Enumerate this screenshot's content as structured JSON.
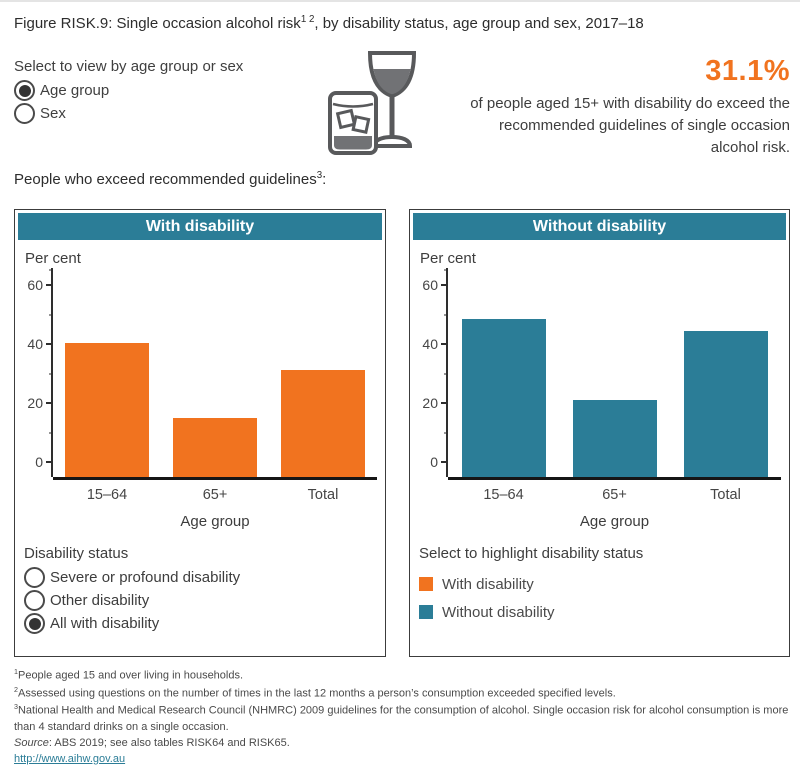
{
  "colors": {
    "orange": "#f1731f",
    "teal": "#2b7d97"
  },
  "page": {
    "title": {
      "text": "Figure RISK.9: Single occasion alcohol risk",
      "sup": "1 2",
      "suffix": ", by disability status, age group and sex, 2017–18"
    }
  },
  "view_selector": {
    "label": "Select to view by age group or sex",
    "options": [
      {
        "label": "Age group",
        "selected": true
      },
      {
        "label": "Sex",
        "selected": false
      }
    ]
  },
  "icon": {
    "name": "wine-glass-and-tumbler",
    "stroke": "#58595b",
    "fill": "#717275"
  },
  "stat": {
    "value": "31.1%",
    "description": "of people aged 15+ with disability do exceed the recommended guidelines of single occasion alcohol risk."
  },
  "subtitle": {
    "text": "People who exceed recommended guidelines",
    "sup": "3",
    "suffix": ":"
  },
  "chart_data": [
    {
      "type": "bar",
      "title": "With disability",
      "y_axis_label": "Per cent",
      "x_axis_label": "Age group",
      "categories": [
        "15–64",
        "65+",
        "Total"
      ],
      "values": [
        40.2,
        15.0,
        31.1
      ],
      "bar_color": "#f1731f",
      "ylim": [
        0,
        65
      ],
      "yticks": [
        0,
        20,
        40,
        60
      ],
      "minor_ticks": [
        10,
        30,
        50,
        65
      ],
      "grid": false
    },
    {
      "type": "bar",
      "title": "Without disability",
      "y_axis_label": "Per cent",
      "x_axis_label": "Age group",
      "categories": [
        "15–64",
        "65+",
        "Total"
      ],
      "values": [
        48.5,
        21.0,
        44.4
      ],
      "bar_color": "#2b7d97",
      "ylim": [
        0,
        65
      ],
      "yticks": [
        0,
        20,
        40,
        60
      ],
      "minor_ticks": [
        10,
        30,
        50,
        65
      ],
      "grid": false
    }
  ],
  "disability_selector": {
    "label": "Disability status",
    "options": [
      {
        "label": "Severe or profound disability",
        "selected": false
      },
      {
        "label": "Other disability",
        "selected": false
      },
      {
        "label": "All with disability",
        "selected": true
      }
    ]
  },
  "highlight_legend": {
    "label": "Select to highlight disability status",
    "items": [
      {
        "label": "With disability",
        "color": "#f1731f"
      },
      {
        "label": "Without disability",
        "color": "#2b7d97"
      }
    ]
  },
  "footnotes": [
    {
      "sup": "1",
      "text": "People aged 15 and over living in households."
    },
    {
      "sup": "2",
      "text": "Assessed using questions on the number of times in the last 12 months a person’s consumption exceeded specified levels."
    },
    {
      "sup": "3",
      "text": "National Health and Medical Research Council (NHMRC) 2009 guidelines for the consumption of alcohol. Single occasion risk for alcohol consumption is more than 4 standard drinks on a single occasion."
    }
  ],
  "source_line": {
    "label": "Source",
    "text": ": ABS 2019; see also tables RISK64 and RISK65."
  },
  "link": {
    "text": "http://www.aihw.gov.au"
  }
}
